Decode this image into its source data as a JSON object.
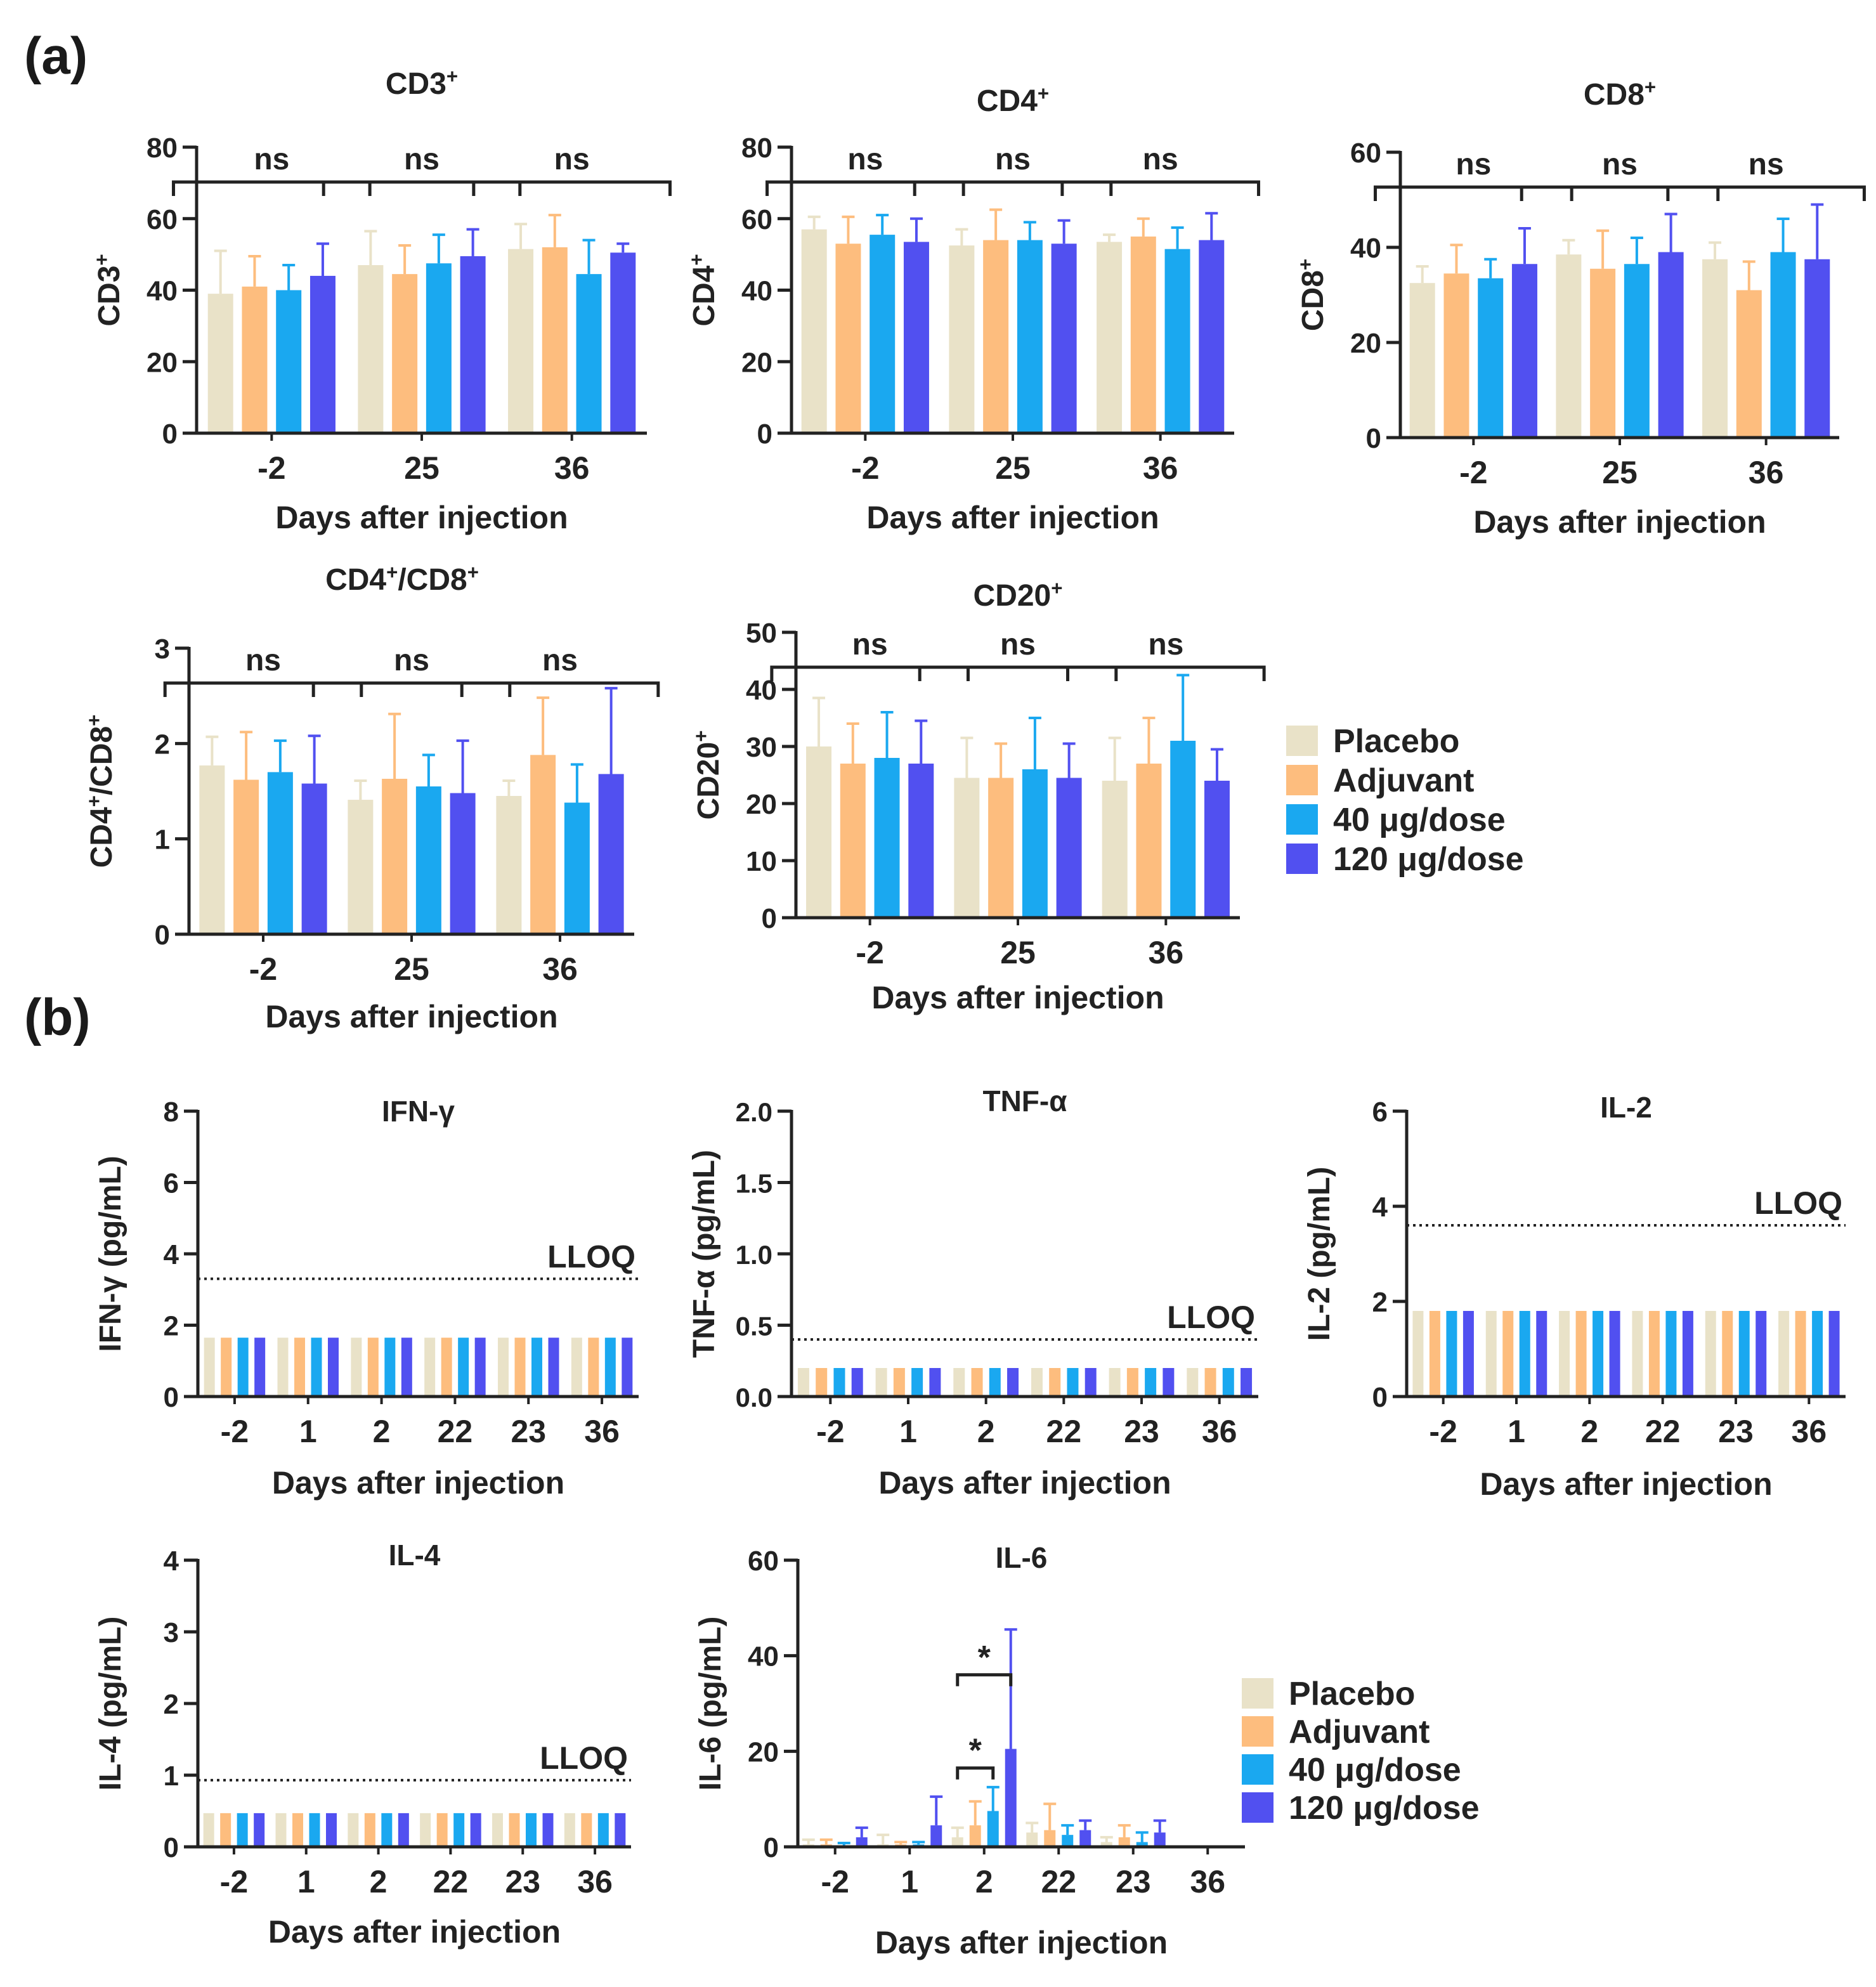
{
  "figure": {
    "panel_a_label": "(a)",
    "panel_b_label": "(b)",
    "legend_a": [
      "Placebo",
      "Adjuvant",
      "40 μg/dose",
      "120 μg/dose"
    ],
    "legend_b": [
      "Placebo",
      "Adjuvant",
      "40 μg/dose",
      "120 μg/dose"
    ]
  },
  "colors": {
    "placebo": "#e9e2c8",
    "adjuvant": "#fdbd7e",
    "dose40": "#1aa8f0",
    "dose120": "#5150f0"
  },
  "chart_data": [
    {
      "id": "cd3",
      "type": "bar",
      "title": "CD3",
      "title_sup": "+",
      "ylabel": "CD3",
      "ylabel_sup": "+",
      "xlabel": "Days after injection",
      "categories": [
        "-2",
        "25",
        "36"
      ],
      "ylim": [
        0,
        80
      ],
      "yticks": [
        "0",
        "20",
        "40",
        "60",
        "80"
      ],
      "series": [
        {
          "name": "Placebo",
          "values": [
            39,
            47,
            51.5
          ],
          "errors": [
            12,
            9.5,
            7
          ]
        },
        {
          "name": "Adjuvant",
          "values": [
            41,
            44.5,
            52
          ],
          "errors": [
            8.5,
            8,
            9
          ]
        },
        {
          "name": "40 μg/dose",
          "values": [
            40,
            47.5,
            44.5
          ],
          "errors": [
            7,
            8,
            9.5
          ]
        },
        {
          "name": "120 μg/dose",
          "values": [
            44,
            49.5,
            50.5
          ],
          "errors": [
            9,
            7.5,
            2.5
          ]
        }
      ],
      "annotations": [
        "ns",
        "ns",
        "ns"
      ]
    },
    {
      "id": "cd4",
      "type": "bar",
      "title": "CD4",
      "title_sup": "+",
      "ylabel": "CD4",
      "ylabel_sup": "+",
      "xlabel": "Days after injection",
      "categories": [
        "-2",
        "25",
        "36"
      ],
      "ylim": [
        0,
        80
      ],
      "yticks": [
        "0",
        "20",
        "40",
        "60",
        "80"
      ],
      "series": [
        {
          "name": "Placebo",
          "values": [
            57,
            52.5,
            53.5
          ],
          "errors": [
            3.5,
            4.5,
            2
          ]
        },
        {
          "name": "Adjuvant",
          "values": [
            53,
            54,
            55
          ],
          "errors": [
            7.5,
            8.5,
            5
          ]
        },
        {
          "name": "40 μg/dose",
          "values": [
            55.5,
            54,
            51.5
          ],
          "errors": [
            5.5,
            5,
            6
          ]
        },
        {
          "name": "120 μg/dose",
          "values": [
            53.5,
            53,
            54
          ],
          "errors": [
            6.5,
            6.5,
            7.5
          ]
        }
      ],
      "annotations": [
        "ns",
        "ns",
        "ns"
      ]
    },
    {
      "id": "cd8",
      "type": "bar",
      "title": "CD8",
      "title_sup": "+",
      "ylabel": "CD8",
      "ylabel_sup": "+",
      "xlabel": "Days after injection",
      "categories": [
        "-2",
        "25",
        "36"
      ],
      "ylim": [
        0,
        60
      ],
      "yticks": [
        "0",
        "20",
        "40",
        "60"
      ],
      "series": [
        {
          "name": "Placebo",
          "values": [
            32.5,
            38.5,
            37.5
          ],
          "errors": [
            3.5,
            3,
            3.5
          ]
        },
        {
          "name": "Adjuvant",
          "values": [
            34.5,
            35.5,
            31
          ],
          "errors": [
            6,
            8,
            6
          ]
        },
        {
          "name": "40 μg/dose",
          "values": [
            33.5,
            36.5,
            39
          ],
          "errors": [
            4,
            5.5,
            7
          ]
        },
        {
          "name": "120 μg/dose",
          "values": [
            36.5,
            39,
            37.5
          ],
          "errors": [
            7.5,
            8,
            11.5
          ]
        }
      ],
      "annotations": [
        "ns",
        "ns",
        "ns"
      ]
    },
    {
      "id": "cd4cd8",
      "type": "bar",
      "title": "CD4+/CD8+",
      "ylabel": "CD4+/CD8+",
      "xlabel": "Days after injection",
      "categories": [
        "-2",
        "25",
        "36"
      ],
      "ylim": [
        0,
        3
      ],
      "yticks": [
        "0",
        "1",
        "2",
        "3"
      ],
      "series": [
        {
          "name": "Placebo",
          "values": [
            1.77,
            1.41,
            1.45
          ],
          "errors": [
            0.3,
            0.2,
            0.16
          ]
        },
        {
          "name": "Adjuvant",
          "values": [
            1.62,
            1.63,
            1.88
          ],
          "errors": [
            0.5,
            0.68,
            0.6
          ]
        },
        {
          "name": "40 μg/dose",
          "values": [
            1.7,
            1.55,
            1.38
          ],
          "errors": [
            0.33,
            0.33,
            0.4
          ]
        },
        {
          "name": "120 μg/dose",
          "values": [
            1.58,
            1.48,
            1.68
          ],
          "errors": [
            0.5,
            0.55,
            0.9
          ]
        }
      ],
      "annotations": [
        "ns",
        "ns",
        "ns"
      ]
    },
    {
      "id": "cd20",
      "type": "bar",
      "title": "CD20",
      "title_sup": "+",
      "ylabel": "CD20",
      "ylabel_sup": "+",
      "xlabel": "Days after injection",
      "categories": [
        "-2",
        "25",
        "36"
      ],
      "ylim": [
        0,
        50
      ],
      "yticks": [
        "0",
        "10",
        "20",
        "30",
        "40",
        "50"
      ],
      "series": [
        {
          "name": "Placebo",
          "values": [
            30,
            24.5,
            24
          ],
          "errors": [
            8.5,
            7,
            7.5
          ]
        },
        {
          "name": "Adjuvant",
          "values": [
            27,
            24.5,
            27
          ],
          "errors": [
            7,
            6,
            8
          ]
        },
        {
          "name": "40 μg/dose",
          "values": [
            28,
            26,
            31
          ],
          "errors": [
            8,
            9,
            11.5
          ]
        },
        {
          "name": "120 μg/dose",
          "values": [
            27,
            24.5,
            24
          ],
          "errors": [
            7.5,
            6,
            5.5
          ]
        }
      ],
      "annotations": [
        "ns",
        "ns",
        "ns"
      ]
    },
    {
      "id": "ifng",
      "type": "bar",
      "title": "IFN-γ",
      "ylabel": "IFN-γ (pg/mL)",
      "xlabel": "Days after injection",
      "categories": [
        "-2",
        "1",
        "2",
        "22",
        "23",
        "36"
      ],
      "ylim": [
        0,
        8
      ],
      "yticks": [
        "0",
        "2",
        "4",
        "6",
        "8"
      ],
      "series": [
        {
          "name": "Placebo",
          "values": [
            1.65,
            1.65,
            1.65,
            1.65,
            1.65,
            1.65
          ]
        },
        {
          "name": "Adjuvant",
          "values": [
            1.65,
            1.65,
            1.65,
            1.65,
            1.65,
            1.65
          ]
        },
        {
          "name": "40 μg/dose",
          "values": [
            1.65,
            1.65,
            1.65,
            1.65,
            1.65,
            1.65
          ]
        },
        {
          "name": "120 μg/dose",
          "values": [
            1.65,
            1.65,
            1.65,
            1.65,
            1.65,
            1.65
          ]
        }
      ],
      "lloq": 3.3,
      "lloq_label": "LLOQ"
    },
    {
      "id": "tnfa",
      "type": "bar",
      "title": "TNF-α",
      "ylabel": "TNF-α (pg/mL)",
      "xlabel": "Days after injection",
      "categories": [
        "-2",
        "1",
        "2",
        "22",
        "23",
        "36"
      ],
      "ylim": [
        0,
        2
      ],
      "yticks": [
        "0.0",
        "0.5",
        "1.0",
        "1.5",
        "2.0"
      ],
      "series": [
        {
          "name": "Placebo",
          "values": [
            0.2,
            0.2,
            0.2,
            0.2,
            0.2,
            0.2
          ]
        },
        {
          "name": "Adjuvant",
          "values": [
            0.2,
            0.2,
            0.2,
            0.2,
            0.2,
            0.2
          ]
        },
        {
          "name": "40 μg/dose",
          "values": [
            0.2,
            0.2,
            0.2,
            0.2,
            0.2,
            0.2
          ]
        },
        {
          "name": "120 μg/dose",
          "values": [
            0.2,
            0.2,
            0.2,
            0.2,
            0.2,
            0.2
          ]
        }
      ],
      "lloq": 0.4,
      "lloq_label": "LLOQ"
    },
    {
      "id": "il2",
      "type": "bar",
      "title": "IL-2",
      "ylabel": "IL-2 (pg/mL)",
      "xlabel": "Days after injection",
      "categories": [
        "-2",
        "1",
        "2",
        "22",
        "23",
        "36"
      ],
      "ylim": [
        0,
        6
      ],
      "yticks": [
        "0",
        "2",
        "4",
        "6"
      ],
      "series": [
        {
          "name": "Placebo",
          "values": [
            1.8,
            1.8,
            1.8,
            1.8,
            1.8,
            1.8
          ]
        },
        {
          "name": "Adjuvant",
          "values": [
            1.8,
            1.8,
            1.8,
            1.8,
            1.8,
            1.8
          ]
        },
        {
          "name": "40 μg/dose",
          "values": [
            1.8,
            1.8,
            1.8,
            1.8,
            1.8,
            1.8
          ]
        },
        {
          "name": "120 μg/dose",
          "values": [
            1.8,
            1.8,
            1.8,
            1.8,
            1.8,
            1.8
          ]
        }
      ],
      "lloq": 3.6,
      "lloq_label": "LLOQ"
    },
    {
      "id": "il4",
      "type": "bar",
      "title": "IL-4",
      "ylabel": "IL-4 (pg/mL)",
      "xlabel": "Days after injection",
      "categories": [
        "-2",
        "1",
        "2",
        "22",
        "23",
        "36"
      ],
      "ylim": [
        0,
        4
      ],
      "yticks": [
        "0",
        "1",
        "2",
        "3",
        "4"
      ],
      "series": [
        {
          "name": "Placebo",
          "values": [
            0.47,
            0.47,
            0.47,
            0.47,
            0.47,
            0.47
          ]
        },
        {
          "name": "Adjuvant",
          "values": [
            0.47,
            0.47,
            0.47,
            0.47,
            0.47,
            0.47
          ]
        },
        {
          "name": "40 μg/dose",
          "values": [
            0.47,
            0.47,
            0.47,
            0.47,
            0.47,
            0.47
          ]
        },
        {
          "name": "120 μg/dose",
          "values": [
            0.47,
            0.47,
            0.47,
            0.47,
            0.47,
            0.47
          ]
        }
      ],
      "lloq": 0.93,
      "lloq_label": "LLOQ"
    },
    {
      "id": "il6",
      "type": "bar",
      "title": "IL-6",
      "ylabel": "IL-6 (pg/mL)",
      "xlabel": "Days after injection",
      "categories": [
        "-2",
        "1",
        "2",
        "22",
        "23",
        "36"
      ],
      "ylim": [
        0,
        60
      ],
      "yticks": [
        "0",
        "20",
        "40",
        "60"
      ],
      "series": [
        {
          "name": "Placebo",
          "values": [
            0.5,
            0.5,
            2,
            3,
            1,
            0
          ],
          "errors": [
            1,
            2,
            2,
            2,
            1,
            0
          ]
        },
        {
          "name": "Adjuvant",
          "values": [
            0.5,
            0.5,
            4.5,
            3.5,
            2,
            0
          ],
          "errors": [
            1,
            0.5,
            5,
            5.5,
            2.5,
            0
          ]
        },
        {
          "name": "40 μg/dose",
          "values": [
            0.3,
            0.5,
            7.5,
            2.5,
            1,
            0
          ],
          "errors": [
            0.5,
            0.5,
            5,
            2,
            2,
            0
          ]
        },
        {
          "name": "120 μg/dose",
          "values": [
            2,
            4.5,
            20.5,
            3.5,
            3,
            0
          ],
          "errors": [
            2,
            6,
            25,
            2,
            2.5,
            0
          ]
        }
      ],
      "annotations": [
        "*",
        "*"
      ]
    }
  ]
}
